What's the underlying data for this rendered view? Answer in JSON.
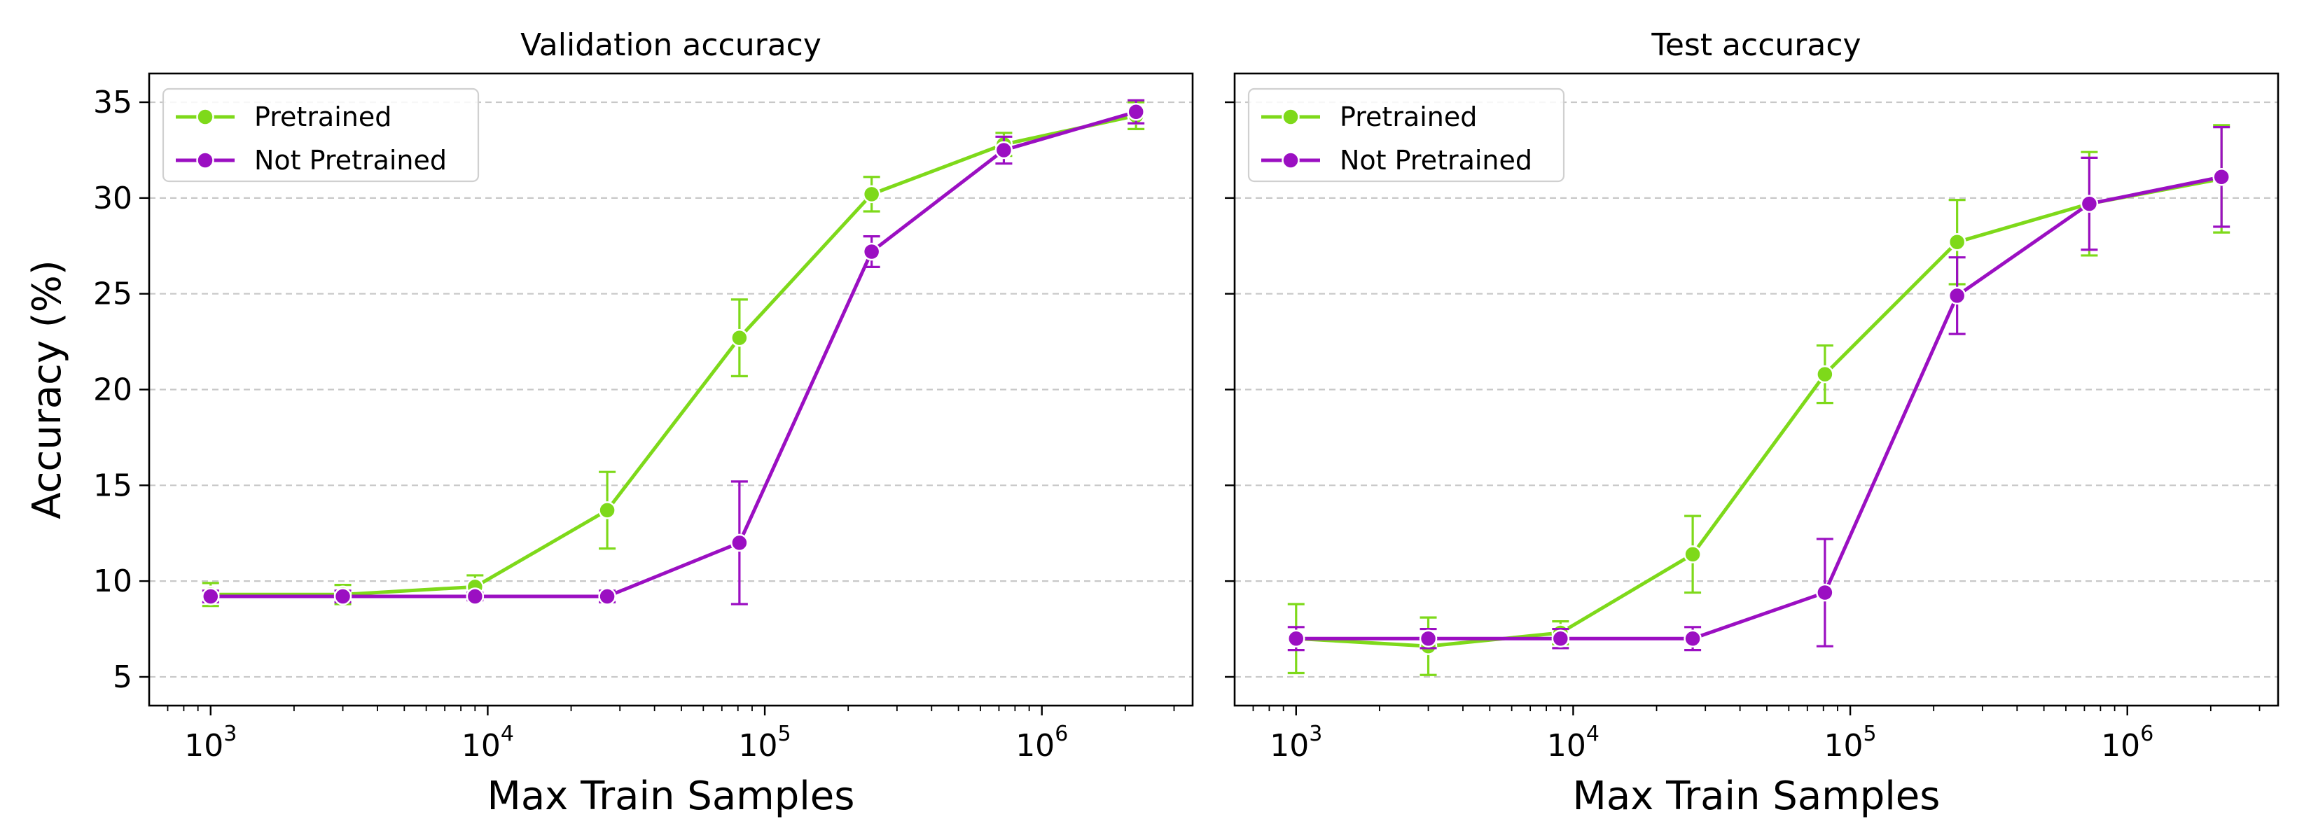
{
  "chart_data": [
    {
      "type": "line",
      "title": "Validation accuracy",
      "xlabel": "Max Train Samples",
      "ylabel": "Accuracy (%)",
      "xscale": "log",
      "xlim": [
        600,
        3500000
      ],
      "ylim": [
        3.5,
        36.5
      ],
      "yticks": [
        5,
        10,
        15,
        20,
        25,
        30,
        35
      ],
      "xticks": [
        {
          "base": "10",
          "exp": "3",
          "value": 1000
        },
        {
          "base": "10",
          "exp": "4",
          "value": 10000
        },
        {
          "base": "10",
          "exp": "5",
          "value": 100000
        },
        {
          "base": "10",
          "exp": "6",
          "value": 1000000
        }
      ],
      "grid": "y-dashed",
      "legend_loc": "upper left",
      "x": [
        1000,
        3000,
        9000,
        27000,
        81000,
        243000,
        729000,
        2187000
      ],
      "series": [
        {
          "name": "Pretrained",
          "color": "#7ed91a",
          "values": [
            9.3,
            9.3,
            9.7,
            13.7,
            22.7,
            30.2,
            32.8,
            34.3
          ],
          "errors": [
            0.6,
            0.5,
            0.6,
            2.0,
            2.0,
            0.9,
            0.6,
            0.7
          ]
        },
        {
          "name": "Not Pretrained",
          "color": "#9b0fc2",
          "values": [
            9.2,
            9.2,
            9.2,
            9.2,
            12.0,
            27.2,
            32.5,
            34.5
          ],
          "errors": [
            0.3,
            0.3,
            0.2,
            0.3,
            3.2,
            0.8,
            0.7,
            0.6
          ]
        }
      ]
    },
    {
      "type": "line",
      "title": "Test accuracy",
      "xlabel": "Max Train Samples",
      "ylabel": "",
      "xscale": "log",
      "xlim": [
        600,
        3500000
      ],
      "ylim": [
        3.5,
        36.5
      ],
      "yticks": [
        5,
        10,
        15,
        20,
        25,
        30,
        35
      ],
      "show_ytick_labels": false,
      "xticks": [
        {
          "base": "10",
          "exp": "3",
          "value": 1000
        },
        {
          "base": "10",
          "exp": "4",
          "value": 10000
        },
        {
          "base": "10",
          "exp": "5",
          "value": 100000
        },
        {
          "base": "10",
          "exp": "6",
          "value": 1000000
        }
      ],
      "grid": "y-dashed",
      "legend_loc": "upper left",
      "x": [
        1000,
        3000,
        9000,
        27000,
        81000,
        243000,
        729000,
        2187000
      ],
      "series": [
        {
          "name": "Pretrained",
          "color": "#7ed91a",
          "values": [
            7.0,
            6.6,
            7.3,
            11.4,
            20.8,
            27.7,
            29.7,
            31.0
          ],
          "errors": [
            1.8,
            1.5,
            0.6,
            2.0,
            1.5,
            2.2,
            2.7,
            2.8
          ]
        },
        {
          "name": "Not Pretrained",
          "color": "#9b0fc2",
          "values": [
            7.0,
            7.0,
            7.0,
            7.0,
            9.4,
            24.9,
            29.7,
            31.1
          ],
          "errors": [
            0.6,
            0.5,
            0.5,
            0.6,
            2.8,
            2.0,
            2.4,
            2.6
          ]
        }
      ]
    }
  ]
}
